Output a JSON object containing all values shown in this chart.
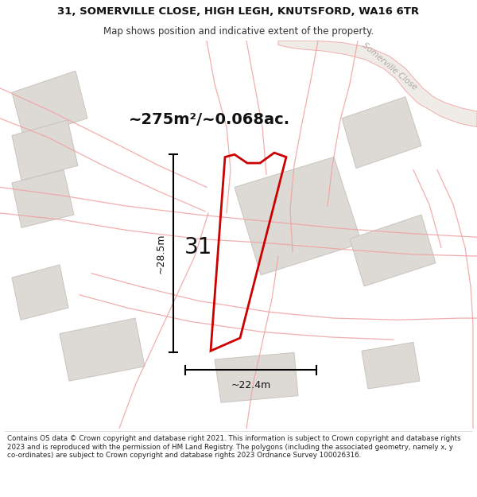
{
  "title_line1": "31, SOMERVILLE CLOSE, HIGH LEGH, KNUTSFORD, WA16 6TR",
  "title_line2": "Map shows position and indicative extent of the property.",
  "area_text": "~275m²/~0.068ac.",
  "number_label": "31",
  "dim_height": "~28.5m",
  "dim_width": "~22.4m",
  "footer_text": "Contains OS data © Crown copyright and database right 2021. This information is subject to Crown copyright and database rights 2023 and is reproduced with the permission of HM Land Registry. The polygons (including the associated geometry, namely x, y co-ordinates) are subject to Crown copyright and database rights 2023 Ordnance Survey 100026316.",
  "bg_color": "#f7f5f3",
  "building_fill": "#dddad6",
  "building_stroke": "#c8c4be",
  "road_color": "#f0a0a0",
  "red_plot_color": "#cc0000",
  "street_label": "Somerville Close",
  "street_label_color": "#b0a8a0",
  "road_fill": "#ece8e4",
  "title_fontsize": 9.5,
  "subtitle_fontsize": 8.5,
  "area_fontsize": 14,
  "number_fontsize": 20,
  "dim_fontsize": 9,
  "footer_fontsize": 6.3
}
